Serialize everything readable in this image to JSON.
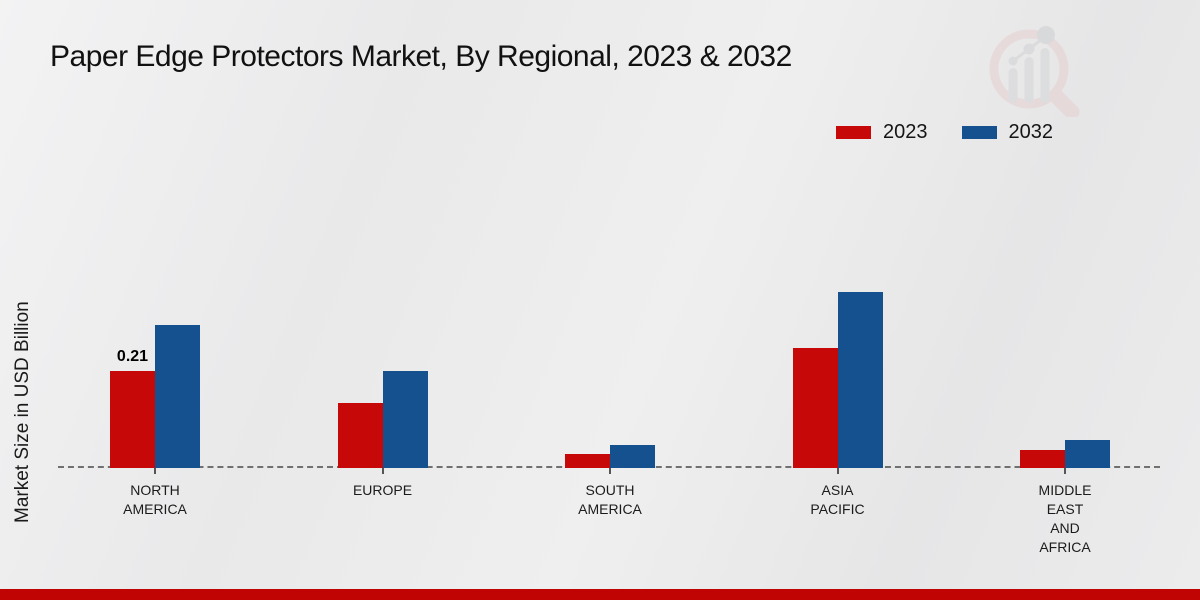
{
  "page_title": "Paper Edge Protectors Market, By Regional, 2023 & 2032",
  "legend": {
    "items": [
      {
        "label": "2023",
        "color": "#c70808"
      },
      {
        "label": "2032",
        "color": "#15518f"
      }
    ]
  },
  "colors": {
    "series_2023": "#c70808",
    "series_2032": "#15518f",
    "footer_accent_bar": "#c00404",
    "axis_dash": "#707070",
    "background": "#ebebec"
  },
  "chart_data": {
    "type": "bar",
    "title": "Paper Edge Protectors Market, By Regional, 2023 & 2032",
    "xlabel": "",
    "ylabel": "Market Size in USD Billion",
    "categories": [
      "NORTH AMERICA",
      "EUROPE",
      "SOUTH AMERICA",
      "ASIA PACIFIC",
      "MIDDLE EAST AND AFRICA"
    ],
    "category_lines": [
      [
        "NORTH",
        "AMERICA"
      ],
      [
        "EUROPE"
      ],
      [
        "SOUTH",
        "AMERICA"
      ],
      [
        "ASIA",
        "PACIFIC"
      ],
      [
        "MIDDLE",
        "EAST",
        "AND",
        "AFRICA"
      ]
    ],
    "series": [
      {
        "name": "2023",
        "color": "#c70808",
        "values": [
          0.21,
          0.14,
          0.03,
          0.26,
          0.04
        ]
      },
      {
        "name": "2032",
        "color": "#15518f",
        "values": [
          0.31,
          0.21,
          0.05,
          0.38,
          0.06
        ]
      }
    ],
    "annotations": [
      {
        "text": "0.21",
        "category_index": 0,
        "series_index": 0
      }
    ],
    "ylim": [
      0,
      0.4
    ],
    "grid": false,
    "legend_position": "top-right",
    "baseline_style": "dashed",
    "y_axis_ticks_visible": false
  }
}
